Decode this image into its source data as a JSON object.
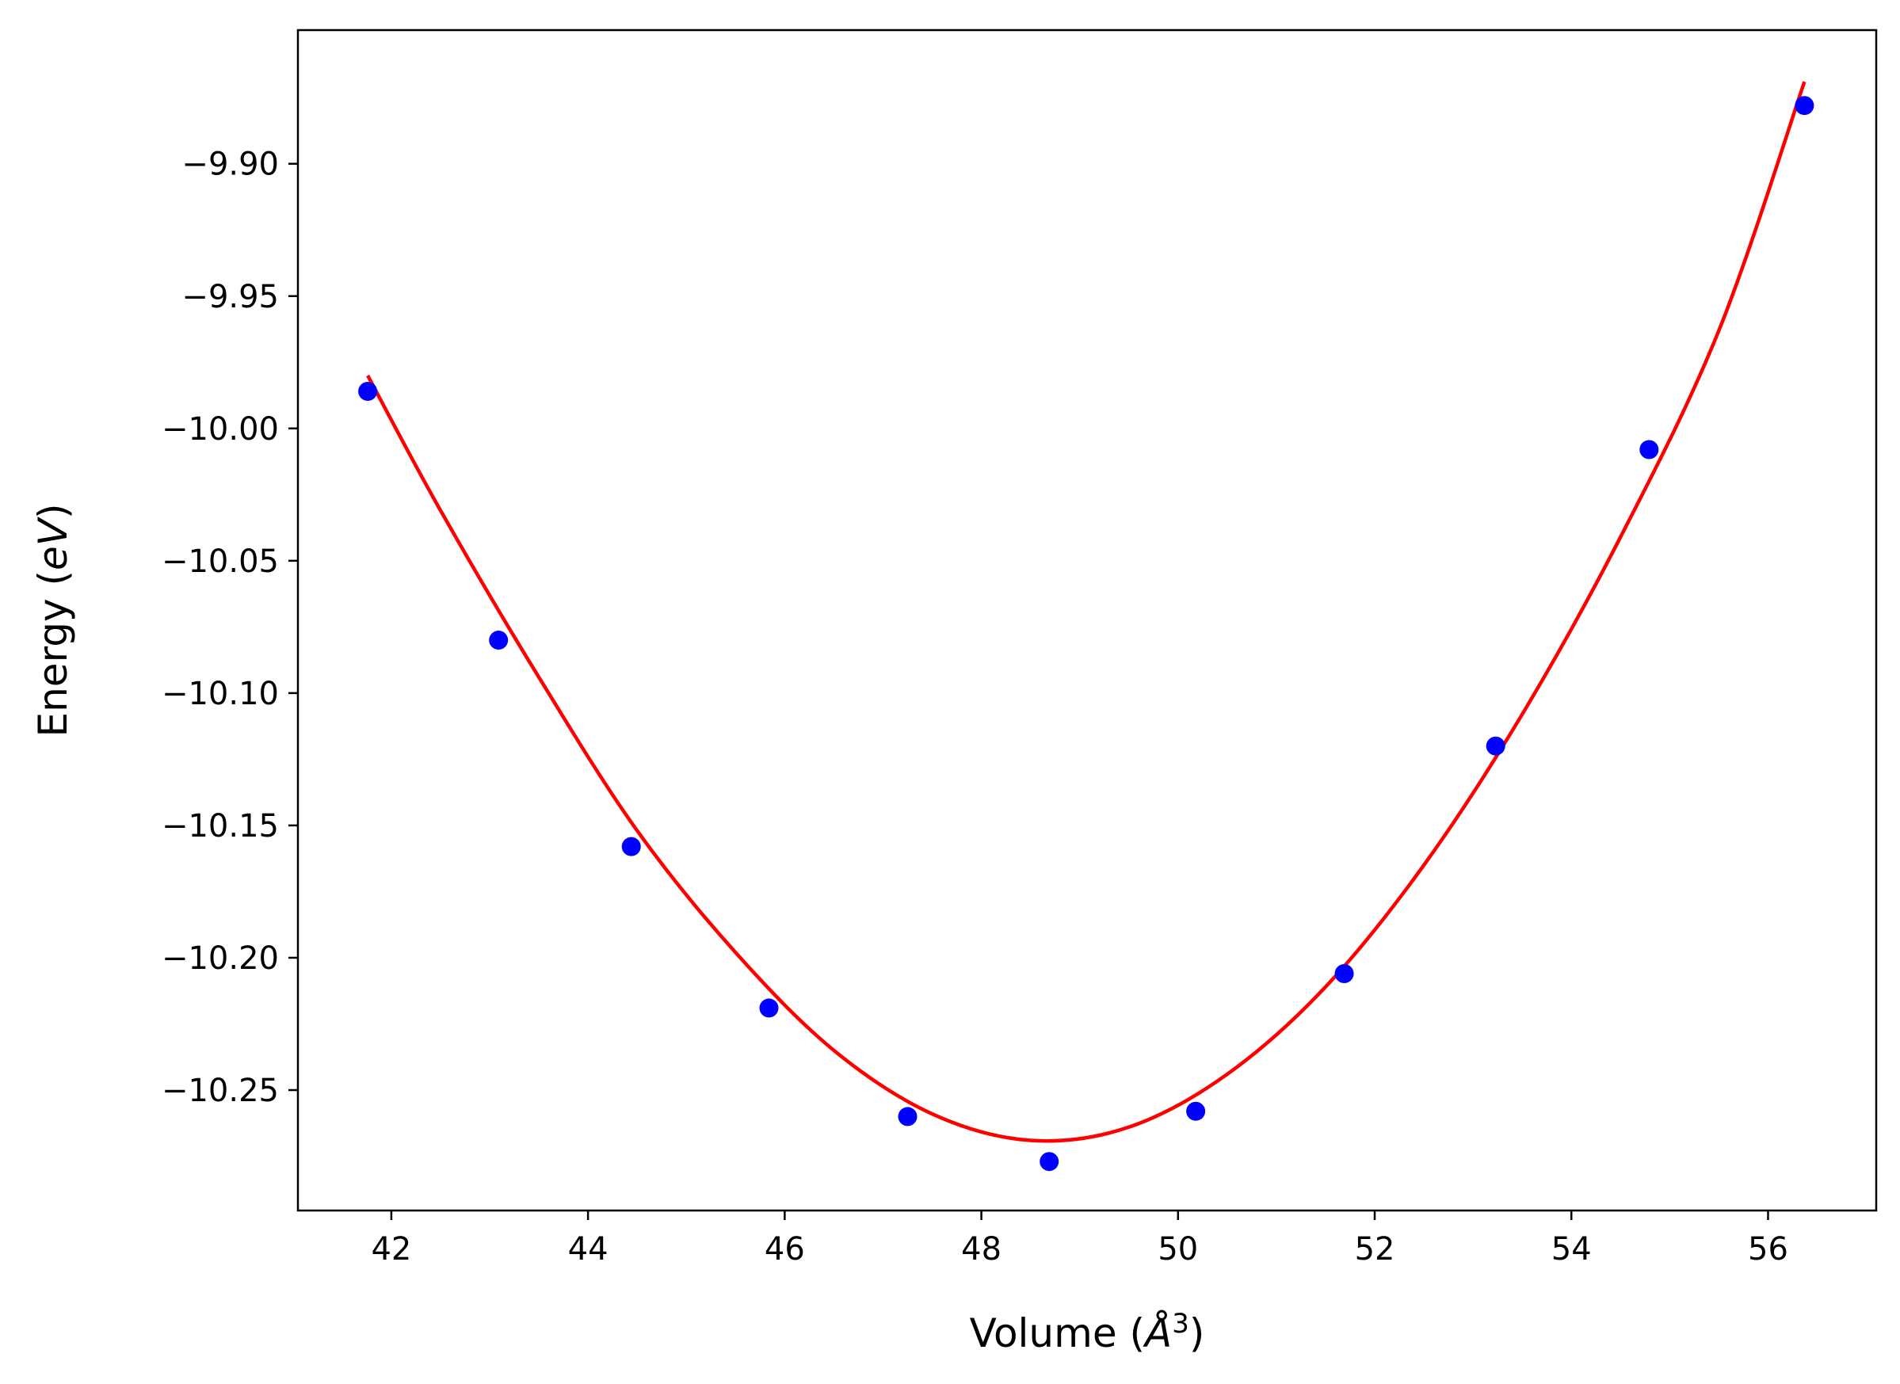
{
  "chart_data": {
    "type": "scatter",
    "xlabel_main": "Volume (",
    "xlabel_unit": "Å",
    "xlabel_sup": "3",
    "xlabel_close": ")",
    "ylabel_main": "Energy (",
    "ylabel_unit": "eV",
    "ylabel_close": ")",
    "xlim": [
      41.05,
      57.1
    ],
    "ylim": [
      -10.2955,
      -9.8495
    ],
    "x_ticks": [
      42,
      44,
      46,
      48,
      50,
      52,
      54,
      56
    ],
    "x_tick_labels": [
      "42",
      "44",
      "46",
      "48",
      "50",
      "52",
      "54",
      "56"
    ],
    "y_ticks": [
      -9.9,
      -9.95,
      -10.0,
      -10.05,
      -10.1,
      -10.15,
      -10.2,
      -10.25
    ],
    "y_tick_labels": [
      "−9.90",
      "−9.95",
      "−10.00",
      "−10.05",
      "−10.10",
      "−10.15",
      "−10.20",
      "−10.25"
    ],
    "grid": false,
    "series": [
      {
        "kind": "points",
        "color": "#0000ff",
        "x": [
          41.76,
          43.09,
          44.44,
          45.84,
          47.25,
          48.69,
          50.18,
          51.69,
          53.23,
          54.79,
          56.37
        ],
        "y": [
          -9.986,
          -10.08,
          -10.158,
          -10.219,
          -10.26,
          -10.277,
          -10.258,
          -10.206,
          -10.12,
          -10.008,
          -9.878
        ]
      },
      {
        "kind": "fit-curve",
        "color": "#ff0000",
        "x": [
          41.76,
          42.5,
          43.5,
          44.5,
          45.5,
          46.5,
          47.5,
          48.5,
          49.5,
          50.5,
          51.5,
          52.5,
          53.5,
          54.5,
          55.5,
          56.37
        ],
        "y": [
          -9.98,
          -10.031,
          -10.094,
          -10.152,
          -10.198,
          -10.235,
          -10.259,
          -10.269,
          -10.264,
          -10.244,
          -10.211,
          -10.165,
          -10.108,
          -10.041,
          -9.963,
          -9.869
        ]
      }
    ]
  }
}
